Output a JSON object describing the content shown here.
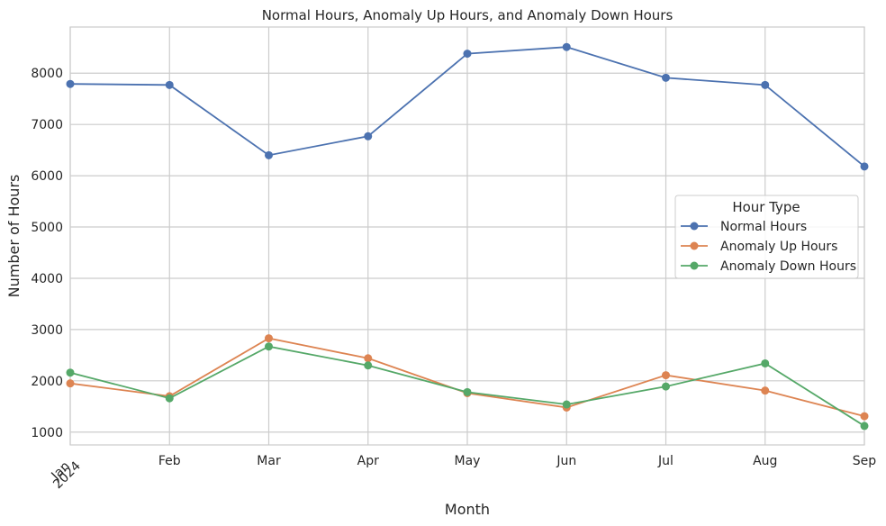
{
  "chart_data": {
    "type": "line",
    "title": "Normal Hours, Anomaly Up Hours, and Anomaly Down Hours",
    "xlabel": "Month",
    "ylabel": "Number of Hours",
    "categories": [
      "Jan",
      "Feb",
      "Mar",
      "Apr",
      "May",
      "Jun",
      "Jul",
      "Aug",
      "Sep"
    ],
    "year_label": "2024",
    "ylim": [
      750,
      8900
    ],
    "yticks": [
      1000,
      2000,
      3000,
      4000,
      5000,
      6000,
      7000,
      8000
    ],
    "grid": true,
    "legend": {
      "title": "Hour Type",
      "placement": "center-right"
    },
    "series": [
      {
        "name": "Normal Hours",
        "color": "#4c72b0",
        "values": [
          7790,
          7770,
          6400,
          6770,
          8380,
          8510,
          7910,
          7770,
          6180
        ]
      },
      {
        "name": "Anomaly Up Hours",
        "color": "#dd8452",
        "values": [
          1950,
          1700,
          2830,
          2440,
          1760,
          1480,
          2110,
          1810,
          1310
        ]
      },
      {
        "name": "Anomaly Down Hours",
        "color": "#55a868",
        "values": [
          2160,
          1660,
          2670,
          2300,
          1780,
          1540,
          1890,
          2340,
          1120
        ]
      }
    ]
  }
}
